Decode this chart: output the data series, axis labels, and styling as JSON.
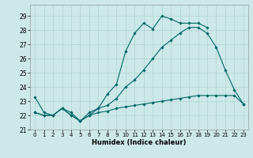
{
  "xlabel": "Humidex (Indice chaleur)",
  "bg_color": "#cce8e8",
  "grid_color": "#b0d4d4",
  "line_color": "#006666",
  "xlim": [
    -0.5,
    23.5
  ],
  "ylim": [
    21.0,
    29.8
  ],
  "yticks": [
    21,
    22,
    23,
    24,
    25,
    26,
    27,
    28,
    29
  ],
  "xticks": [
    0,
    1,
    2,
    3,
    4,
    5,
    6,
    7,
    8,
    9,
    10,
    11,
    12,
    13,
    14,
    15,
    16,
    17,
    18,
    19,
    20,
    21,
    22,
    23
  ],
  "series1": [
    23.3,
    22.2,
    22.0,
    22.5,
    22.2,
    21.6,
    22.2,
    22.5,
    23.5,
    24.2,
    26.5,
    27.8,
    28.5,
    28.1,
    29.0,
    28.8,
    28.5,
    28.5,
    28.5,
    28.2,
    null,
    null,
    null,
    null
  ],
  "series2": [
    22.2,
    22.0,
    22.0,
    22.5,
    22.0,
    21.6,
    22.0,
    22.5,
    22.7,
    23.2,
    24.0,
    24.5,
    25.2,
    26.0,
    26.8,
    27.3,
    27.8,
    28.2,
    28.2,
    27.8,
    26.8,
    25.2,
    23.8,
    22.8
  ],
  "series3": [
    22.2,
    22.0,
    22.0,
    22.5,
    22.0,
    21.6,
    22.0,
    22.2,
    22.3,
    22.5,
    22.6,
    22.7,
    22.8,
    22.9,
    23.0,
    23.1,
    23.2,
    23.3,
    23.4,
    23.4,
    23.4,
    23.4,
    23.4,
    22.8
  ]
}
